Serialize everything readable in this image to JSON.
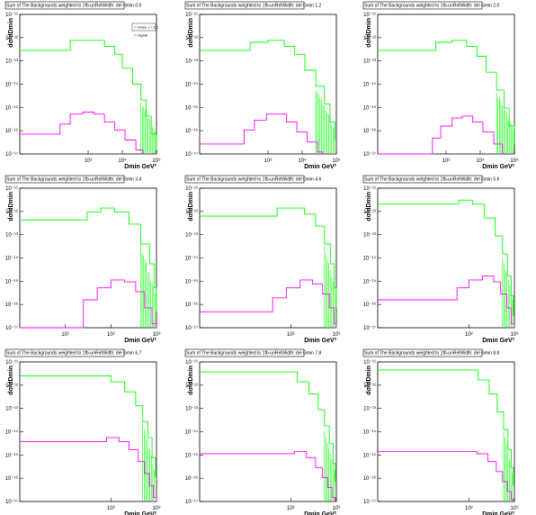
{
  "page": {
    "background": "#ffffff"
  },
  "colors": {
    "background_sum": "#00ff00",
    "signal": "#ff00ff",
    "frame": "#000000"
  },
  "chart_data": [
    {
      "type": "line",
      "title": "Sum of The Backgrounds weighted to 1fb-unRelWidth: del Gmin 0.0",
      "xlabel": "Dmin GeV²",
      "ylabel": "dσ/dDmin",
      "log_x": true,
      "log_y": true,
      "xlim": [
        10,
        100000
      ],
      "ylim": [
        1e-17,
        1e-10
      ],
      "x_ticks": [
        "10³",
        "10⁴",
        "10⁵"
      ],
      "y_ticks": [
        "10⁻¹⁷",
        "10⁻¹⁶",
        "10⁻¹⁵",
        "10⁻¹⁴",
        "10⁻¹³",
        "10⁻¹²",
        "10⁻¹¹"
      ],
      "legend": {
        "position": "top-right",
        "entries": [
          "mass₋ₓⁱ / 1.2",
          "Signal"
        ]
      },
      "series": [
        {
          "color": "#00ff00",
          "noisy_tail": true,
          "points": [
            [
              10,
              -11.8
            ],
            [
              100,
              -11.8
            ],
            [
              300,
              -11.3
            ],
            [
              1000,
              -11.3
            ],
            [
              3000,
              -11.6
            ],
            [
              6000,
              -12.0
            ],
            [
              10000,
              -12.7
            ],
            [
              20000,
              -13.5
            ],
            [
              35000,
              -14.3
            ],
            [
              50000,
              -15.1
            ],
            [
              70000,
              -16.0
            ],
            [
              100000,
              -16.8
            ]
          ]
        },
        {
          "color": "#ff00ff",
          "noisy_tail": false,
          "points": [
            [
              10,
              -16.0
            ],
            [
              80,
              -16.0
            ],
            [
              150,
              -15.5
            ],
            [
              300,
              -15.0
            ],
            [
              700,
              -14.9
            ],
            [
              1500,
              -15.0
            ],
            [
              3000,
              -15.4
            ],
            [
              6000,
              -15.8
            ],
            [
              12000,
              -16.3
            ],
            [
              25000,
              -16.8
            ],
            [
              40000,
              -17.0
            ]
          ]
        }
      ]
    },
    {
      "type": "line",
      "title": "Sum of The Backgrounds weighted to 1fb-unRelWidth: del Gmin 1.2",
      "xlabel": "Dmin GeV²",
      "ylabel": "dσ/dDmin",
      "log_x": true,
      "log_y": true,
      "xlim": [
        10,
        100000
      ],
      "ylim": [
        1e-17,
        1e-10
      ],
      "x_ticks": [
        "10³",
        "10⁴",
        "10⁵"
      ],
      "y_ticks": [
        "10⁻¹⁷",
        "10⁻¹⁶",
        "10⁻¹⁵",
        "10⁻¹⁴",
        "10⁻¹³",
        "10⁻¹²",
        "10⁻¹¹"
      ],
      "series": [
        {
          "color": "#00ff00",
          "noisy_tail": true,
          "points": [
            [
              10,
              -11.8
            ],
            [
              120,
              -11.8
            ],
            [
              300,
              -11.4
            ],
            [
              1000,
              -11.3
            ],
            [
              3000,
              -11.6
            ],
            [
              6000,
              -12.0
            ],
            [
              12000,
              -12.8
            ],
            [
              25000,
              -13.6
            ],
            [
              45000,
              -14.5
            ],
            [
              65000,
              -15.4
            ],
            [
              90000,
              -16.3
            ]
          ]
        },
        {
          "color": "#ff00ff",
          "noisy_tail": false,
          "points": [
            [
              10,
              -16.5
            ],
            [
              100,
              -16.5
            ],
            [
              200,
              -15.8
            ],
            [
              400,
              -15.3
            ],
            [
              900,
              -15.0
            ],
            [
              1800,
              -15.0
            ],
            [
              3500,
              -15.4
            ],
            [
              7000,
              -15.9
            ],
            [
              14000,
              -16.4
            ],
            [
              28000,
              -16.9
            ],
            [
              40000,
              -17.0
            ]
          ]
        }
      ]
    },
    {
      "type": "line",
      "title": "Sum of The Backgrounds weighted to 1fb-unRelWidth: del Gmin 2.0",
      "xlabel": "Dmin GeV²",
      "ylabel": "dσ/dDmin",
      "log_x": true,
      "log_y": true,
      "xlim": [
        10,
        100000
      ],
      "ylim": [
        1e-17,
        1e-10
      ],
      "x_ticks": [
        "10³",
        "10⁴",
        "10⁵"
      ],
      "y_ticks": [
        "10⁻¹⁷",
        "10⁻¹⁶",
        "10⁻¹⁵",
        "10⁻¹⁴",
        "10⁻¹³",
        "10⁻¹²",
        "10⁻¹¹"
      ],
      "series": [
        {
          "color": "#00ff00",
          "noisy_tail": true,
          "points": [
            [
              10,
              -11.8
            ],
            [
              250,
              -11.8
            ],
            [
              500,
              -11.4
            ],
            [
              1500,
              -11.3
            ],
            [
              4000,
              -11.6
            ],
            [
              8000,
              -12.1
            ],
            [
              15000,
              -12.9
            ],
            [
              30000,
              -13.8
            ],
            [
              50000,
              -14.7
            ],
            [
              70000,
              -15.6
            ],
            [
              100000,
              -16.5
            ]
          ]
        },
        {
          "color": "#ff00ff",
          "noisy_tail": false,
          "points": [
            [
              10,
              -17.0
            ],
            [
              250,
              -17.0
            ],
            [
              400,
              -16.2
            ],
            [
              700,
              -15.6
            ],
            [
              1500,
              -15.2
            ],
            [
              3000,
              -15.1
            ],
            [
              6000,
              -15.4
            ],
            [
              12000,
              -15.9
            ],
            [
              25000,
              -16.5
            ],
            [
              45000,
              -17.0
            ]
          ]
        }
      ]
    },
    {
      "type": "line",
      "title": "Sum of The Backgrounds weighted to 1fb-unRelWidth: del Gmin 3.4",
      "xlabel": "Dmin GeV²",
      "ylabel": "dσ/dDmin",
      "log_x": true,
      "log_y": true,
      "xlim": [
        1,
        1000
      ],
      "ylim": [
        1e-17,
        1e-10
      ],
      "x_ticks": [
        "10¹",
        "10²",
        "10³"
      ],
      "y_ticks": [
        "10⁻¹⁷",
        "10⁻¹⁶",
        "10⁻¹⁵",
        "10⁻¹⁴",
        "10⁻¹³",
        "10⁻¹²",
        "10⁻¹¹"
      ],
      "series": [
        {
          "color": "#00ff00",
          "noisy_tail": true,
          "points": [
            [
              1,
              -11.6
            ],
            [
              15,
              -11.6
            ],
            [
              30,
              -11.2
            ],
            [
              60,
              -11.0
            ],
            [
              120,
              -11.2
            ],
            [
              250,
              -11.8
            ],
            [
              450,
              -12.8
            ],
            [
              700,
              -13.8
            ],
            [
              900,
              -15.0
            ],
            [
              1000,
              -16.2
            ]
          ]
        },
        {
          "color": "#ff00ff",
          "noisy_tail": false,
          "points": [
            [
              1,
              -17.0
            ],
            [
              15,
              -17.0
            ],
            [
              25,
              -15.6
            ],
            [
              50,
              -15.0
            ],
            [
              100,
              -14.6
            ],
            [
              200,
              -14.7
            ],
            [
              350,
              -15.2
            ],
            [
              550,
              -16.0
            ],
            [
              800,
              -16.8
            ],
            [
              1000,
              -17.0
            ]
          ]
        }
      ]
    },
    {
      "type": "line",
      "title": "Sum of The Backgrounds weighted to 1fb-unRelWidth: del Gmin 4.6",
      "xlabel": "Dmin GeV²",
      "ylabel": "dσ/dDmin",
      "log_x": true,
      "log_y": true,
      "xlim": [
        1,
        1000
      ],
      "ylim": [
        1e-17,
        1e-10
      ],
      "x_ticks": [
        "10²",
        "10³"
      ],
      "y_ticks": [
        "10⁻¹⁷",
        "10⁻¹⁶",
        "10⁻¹⁵",
        "10⁻¹⁴",
        "10⁻¹³",
        "10⁻¹²",
        "10⁻¹¹"
      ],
      "series": [
        {
          "color": "#00ff00",
          "noisy_tail": true,
          "points": [
            [
              1,
              -11.4
            ],
            [
              25,
              -11.4
            ],
            [
              50,
              -11.0
            ],
            [
              100,
              -11.0
            ],
            [
              200,
              -11.3
            ],
            [
              350,
              -11.9
            ],
            [
              550,
              -12.8
            ],
            [
              750,
              -13.8
            ],
            [
              900,
              -15.0
            ],
            [
              1000,
              -16.0
            ]
          ]
        },
        {
          "color": "#ff00ff",
          "noisy_tail": false,
          "points": [
            [
              1,
              -16.2
            ],
            [
              25,
              -16.2
            ],
            [
              40,
              -15.5
            ],
            [
              80,
              -15.0
            ],
            [
              160,
              -14.6
            ],
            [
              300,
              -14.8
            ],
            [
              500,
              -15.3
            ],
            [
              700,
              -16.0
            ],
            [
              900,
              -16.8
            ],
            [
              1000,
              -17.0
            ]
          ]
        }
      ]
    },
    {
      "type": "line",
      "title": "Sum of The Backgrounds weighted to 1fb-unRelWidth: del Gmin 5.6",
      "xlabel": "Dmin GeV²",
      "ylabel": "dσ/dDmin",
      "log_x": true,
      "log_y": true,
      "xlim": [
        1,
        1000
      ],
      "ylim": [
        1e-17,
        1e-10
      ],
      "x_ticks": [
        "10²",
        "10³"
      ],
      "y_ticks": [
        "10⁻¹⁷",
        "10⁻¹⁶",
        "10⁻¹⁵",
        "10⁻¹⁴",
        "10⁻¹³",
        "10⁻¹²",
        "10⁻¹¹"
      ],
      "series": [
        {
          "color": "#00ff00",
          "noisy_tail": true,
          "points": [
            [
              1,
              -10.8
            ],
            [
              35,
              -10.8
            ],
            [
              60,
              -10.6
            ],
            [
              120,
              -10.8
            ],
            [
              220,
              -11.5
            ],
            [
              380,
              -12.4
            ],
            [
              550,
              -13.3
            ],
            [
              700,
              -14.4
            ],
            [
              850,
              -15.4
            ],
            [
              950,
              -16.4
            ]
          ]
        },
        {
          "color": "#ff00ff",
          "noisy_tail": false,
          "points": [
            [
              1,
              -15.6
            ],
            [
              35,
              -15.6
            ],
            [
              55,
              -15.0
            ],
            [
              100,
              -14.6
            ],
            [
              200,
              -14.4
            ],
            [
              350,
              -14.7
            ],
            [
              500,
              -15.3
            ],
            [
              680,
              -16.0
            ],
            [
              850,
              -16.8
            ],
            [
              1000,
              -17.0
            ]
          ]
        }
      ]
    },
    {
      "type": "line",
      "title": "Sum of The Backgrounds weighted to 1fb-unRelWidth: del Gmin 6.7",
      "xlabel": "Dmin GeV²",
      "ylabel": "dσ/dDmin",
      "log_x": true,
      "log_y": true,
      "xlim": [
        1,
        1000
      ],
      "ylim": [
        1e-17,
        1e-10
      ],
      "x_ticks": [
        "10²",
        "10³"
      ],
      "y_ticks": [
        "10⁻¹⁷",
        "10⁻¹⁶",
        "10⁻¹⁵",
        "10⁻¹⁴",
        "10⁻¹³",
        "10⁻¹²",
        "10⁻¹¹"
      ],
      "series": [
        {
          "color": "#00ff00",
          "noisy_tail": true,
          "points": [
            [
              1,
              -10.7
            ],
            [
              50,
              -10.7
            ],
            [
              100,
              -11.0
            ],
            [
              200,
              -11.5
            ],
            [
              350,
              -12.2
            ],
            [
              500,
              -13.0
            ],
            [
              650,
              -13.8
            ],
            [
              800,
              -14.8
            ],
            [
              950,
              -15.8
            ]
          ]
        },
        {
          "color": "#ff00ff",
          "noisy_tail": false,
          "points": [
            [
              1,
              -14.0
            ],
            [
              50,
              -14.0
            ],
            [
              80,
              -13.8
            ],
            [
              150,
              -14.0
            ],
            [
              250,
              -14.4
            ],
            [
              400,
              -15.0
            ],
            [
              550,
              -15.6
            ],
            [
              700,
              -16.2
            ],
            [
              850,
              -16.8
            ],
            [
              1000,
              -17.0
            ]
          ]
        }
      ]
    },
    {
      "type": "line",
      "title": "Sum of The Backgrounds weighted to 1fb-unRelWidth: del Gmin 7.8",
      "xlabel": "Dmin GeV²",
      "ylabel": "dσ/dDmin",
      "log_x": true,
      "log_y": true,
      "xlim": [
        1,
        1000
      ],
      "ylim": [
        1e-17,
        1e-10
      ],
      "x_ticks": [
        "10²",
        "10³"
      ],
      "y_ticks": [
        "10⁻¹⁷",
        "10⁻¹⁶",
        "10⁻¹⁵",
        "10⁻¹⁴",
        "10⁻¹³",
        "10⁻¹²",
        "10⁻¹¹"
      ],
      "series": [
        {
          "color": "#00ff00",
          "noisy_tail": true,
          "points": [
            [
              1,
              -10.5
            ],
            [
              70,
              -10.5
            ],
            [
              140,
              -11.0
            ],
            [
              250,
              -11.6
            ],
            [
              400,
              -12.4
            ],
            [
              550,
              -13.2
            ],
            [
              700,
              -14.1
            ],
            [
              850,
              -15.1
            ],
            [
              950,
              -16.0
            ]
          ]
        },
        {
          "color": "#ff00ff",
          "noisy_tail": false,
          "points": [
            [
              1,
              -14.6
            ],
            [
              70,
              -14.6
            ],
            [
              120,
              -14.5
            ],
            [
              220,
              -14.8
            ],
            [
              350,
              -15.3
            ],
            [
              500,
              -15.8
            ],
            [
              650,
              -16.3
            ],
            [
              800,
              -16.8
            ],
            [
              950,
              -17.0
            ]
          ]
        }
      ]
    },
    {
      "type": "line",
      "title": "Sum of The Backgrounds weighted to 1fb-unRelWidth: del Gmin 8.8",
      "xlabel": "Dmin GeV²",
      "ylabel": "dσ/dDmin",
      "log_x": true,
      "log_y": true,
      "xlim": [
        1,
        1000
      ],
      "ylim": [
        1e-17,
        1e-10
      ],
      "x_ticks": [
        "10²",
        "10³"
      ],
      "y_ticks": [
        "10⁻¹⁷",
        "10⁻¹⁶",
        "10⁻¹⁵",
        "10⁻¹⁴",
        "10⁻¹³",
        "10⁻¹²",
        "10⁻¹¹"
      ],
      "series": [
        {
          "color": "#00ff00",
          "noisy_tail": true,
          "points": [
            [
              1,
              -10.4
            ],
            [
              90,
              -10.4
            ],
            [
              160,
              -10.9
            ],
            [
              280,
              -11.6
            ],
            [
              420,
              -12.5
            ],
            [
              580,
              -13.4
            ],
            [
              720,
              -14.4
            ],
            [
              850,
              -15.3
            ],
            [
              950,
              -16.2
            ]
          ]
        },
        {
          "color": "#ff00ff",
          "noisy_tail": false,
          "points": [
            [
              1,
              -14.5
            ],
            [
              80,
              -14.5
            ],
            [
              150,
              -14.6
            ],
            [
              260,
              -15.0
            ],
            [
              400,
              -15.5
            ],
            [
              550,
              -16.0
            ],
            [
              700,
              -16.5
            ],
            [
              850,
              -16.9
            ],
            [
              950,
              -17.0
            ]
          ]
        }
      ]
    }
  ]
}
